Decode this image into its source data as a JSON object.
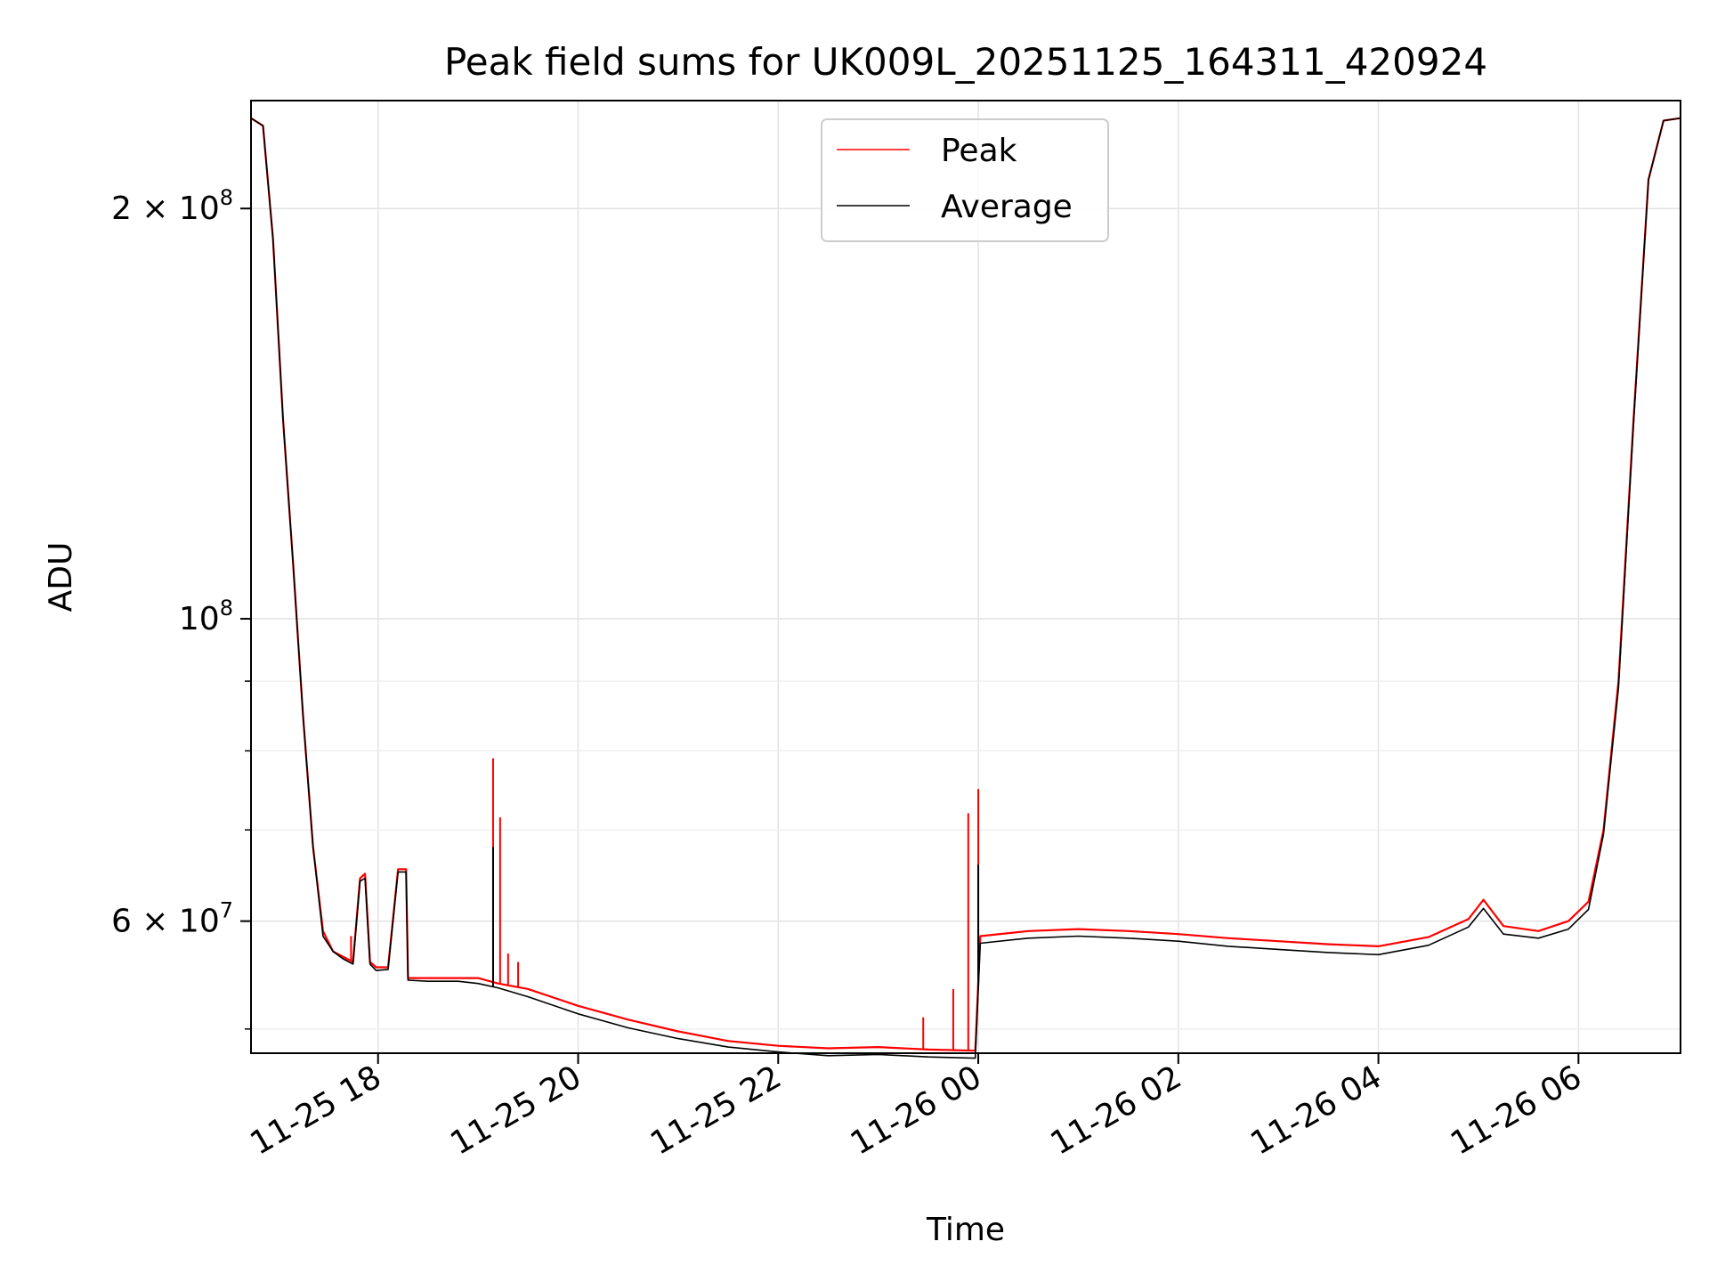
{
  "chart_data": {
    "type": "line",
    "title": "Peak field sums for UK009L_20251125_164311_420924",
    "xlabel": "Time",
    "ylabel": "ADU",
    "y_scale": "log",
    "xlim_hours": [
      16.73,
      31.02
    ],
    "ylim": [
      48000000,
      240000000
    ],
    "grid": true,
    "legend_position": "top-center",
    "x_ticks": [
      {
        "hours": 18,
        "label": "11-25 18"
      },
      {
        "hours": 20,
        "label": "11-25 20"
      },
      {
        "hours": 22,
        "label": "11-25 22"
      },
      {
        "hours": 24,
        "label": "11-26 00"
      },
      {
        "hours": 26,
        "label": "11-26 02"
      },
      {
        "hours": 28,
        "label": "11-26 04"
      },
      {
        "hours": 30,
        "label": "11-26 06"
      }
    ],
    "y_major_ticks": [
      {
        "value": 60000000,
        "base": "6 × 10",
        "exp": "7"
      },
      {
        "value": 100000000,
        "base": "10",
        "exp": "8"
      },
      {
        "value": 200000000,
        "base": "2 × 10",
        "exp": "8"
      }
    ],
    "y_minor_ticks": [
      50000000,
      70000000,
      80000000,
      90000000
    ],
    "series": [
      {
        "name": "Peak",
        "color": "#ff0000",
        "x_hours": [
          16.73,
          16.85,
          16.95,
          17.05,
          17.15,
          17.25,
          17.35,
          17.45,
          17.55,
          17.65,
          17.75,
          17.82,
          17.87,
          17.92,
          17.98,
          18.1,
          18.2,
          18.28,
          18.3,
          18.5,
          18.8,
          19.0,
          19.2,
          19.5,
          20.0,
          20.5,
          21.0,
          21.5,
          22.0,
          22.5,
          23.0,
          23.5,
          23.97,
          24.02,
          24.5,
          25.0,
          25.5,
          26.0,
          26.5,
          27.0,
          27.5,
          28.0,
          28.5,
          28.9,
          29.05,
          29.25,
          29.6,
          29.9,
          30.1,
          30.25,
          30.4,
          30.55,
          30.7,
          30.85,
          31.02
        ],
        "values": [
          233000000,
          230000000,
          190000000,
          140000000,
          110000000,
          85000000,
          68000000,
          59000000,
          57000000,
          56500000,
          56000000,
          64500000,
          65000000,
          56000000,
          55500000,
          55500000,
          65500000,
          65500000,
          54500000,
          54500000,
          54500000,
          54500000,
          54000000,
          53500000,
          52000000,
          50800000,
          49800000,
          49000000,
          48600000,
          48400000,
          48500000,
          48300000,
          48200000,
          58500000,
          59000000,
          59200000,
          59000000,
          58700000,
          58300000,
          58000000,
          57700000,
          57500000,
          58400000,
          60200000,
          62200000,
          59500000,
          59000000,
          60000000,
          62000000,
          70000000,
          90000000,
          140000000,
          210000000,
          232000000,
          233000000
        ],
        "spikes": [
          {
            "hour": 17.73,
            "value": 58500000
          },
          {
            "hour": 19.15,
            "value": 79000000
          },
          {
            "hour": 19.22,
            "value": 71500000
          },
          {
            "hour": 19.3,
            "value": 56800000
          },
          {
            "hour": 19.4,
            "value": 56000000
          },
          {
            "hour": 23.45,
            "value": 51000000
          },
          {
            "hour": 23.75,
            "value": 53500000
          },
          {
            "hour": 23.9,
            "value": 72000000
          },
          {
            "hour": 24.0,
            "value": 75000000
          }
        ]
      },
      {
        "name": "Average",
        "color": "#000000",
        "x_hours": [
          16.73,
          16.85,
          16.95,
          17.05,
          17.15,
          17.25,
          17.35,
          17.45,
          17.55,
          17.65,
          17.75,
          17.82,
          17.87,
          17.92,
          17.98,
          18.1,
          18.2,
          18.28,
          18.3,
          18.5,
          18.8,
          19.0,
          19.2,
          19.5,
          20.0,
          20.5,
          21.0,
          21.5,
          22.0,
          22.5,
          23.0,
          23.5,
          23.97,
          24.02,
          24.5,
          25.0,
          25.5,
          26.0,
          26.5,
          27.0,
          27.5,
          28.0,
          28.5,
          28.9,
          29.05,
          29.25,
          29.6,
          29.9,
          30.1,
          30.25,
          30.4,
          30.55,
          30.7,
          30.85,
          31.02
        ],
        "values": [
          233000000,
          230000000,
          190000000,
          140000000,
          110000000,
          85000000,
          68000000,
          58500000,
          57000000,
          56300000,
          55800000,
          64200000,
          64500000,
          55800000,
          55200000,
          55300000,
          65200000,
          65200000,
          54300000,
          54200000,
          54200000,
          54000000,
          53600000,
          52800000,
          51300000,
          50100000,
          49200000,
          48500000,
          48100000,
          47800000,
          47900000,
          47700000,
          47600000,
          57800000,
          58300000,
          58500000,
          58300000,
          58000000,
          57500000,
          57200000,
          56900000,
          56700000,
          57600000,
          59400000,
          61300000,
          58700000,
          58300000,
          59200000,
          61200000,
          69500000,
          89000000,
          139000000,
          210000000,
          232000000,
          233000000
        ],
        "spikes": [
          {
            "hour": 19.15,
            "value": 68000000
          },
          {
            "hour": 24.0,
            "value": 66000000
          }
        ]
      }
    ]
  }
}
